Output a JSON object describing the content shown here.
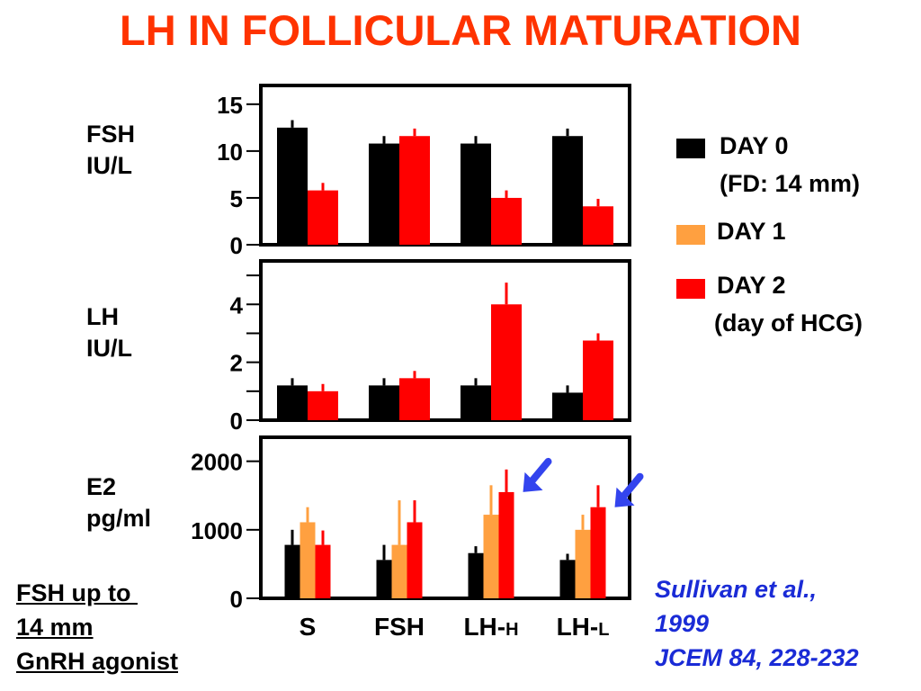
{
  "title": "LH IN FOLLICULAR MATURATION",
  "colors": {
    "title": "#ff3300",
    "day0": "#000000",
    "day1": "#ffa040",
    "day2": "#ff0000",
    "arrow": "#3344ee",
    "citation": "#1a2bd6"
  },
  "legend": [
    {
      "key": "day0",
      "line1": "DAY 0",
      "line2": "(FD: 14 mm)"
    },
    {
      "key": "day1",
      "line1": "DAY 1",
      "line2": ""
    },
    {
      "key": "day2",
      "line1": "DAY 2",
      "line2": "(day of HCG)"
    }
  ],
  "panels_labels": [
    {
      "line1": "FSH",
      "line2": "IU/L"
    },
    {
      "line1": "LH",
      "line2": "IU/L"
    },
    {
      "line1": "E2",
      "line2": "pg/ml"
    }
  ],
  "footnote": {
    "line1": "FSH up to ",
    "line2": "14 mm",
    "line3": "GnRH agonist"
  },
  "citation": {
    "line1": "Sullivan et al.,",
    "line2": "1999",
    "line3": "JCEM 84, 228-232"
  },
  "chart_data": [
    {
      "type": "bar",
      "ylabel": "FSH IU/L",
      "ylim": [
        0,
        17
      ],
      "yticks": [
        0,
        5,
        10,
        15
      ],
      "categories": [
        "S",
        "FSH",
        "LH-H",
        "LH-L"
      ],
      "series": [
        {
          "name": "DAY 0",
          "values": [
            12.5,
            10.8,
            10.8,
            11.6
          ],
          "errors": [
            0.8,
            0.8,
            0.8,
            0.8
          ]
        },
        {
          "name": "DAY 2",
          "values": [
            5.8,
            11.6,
            5.0,
            4.1
          ],
          "errors": [
            0.8,
            0.8,
            0.8,
            0.8
          ]
        }
      ]
    },
    {
      "type": "bar",
      "ylabel": "LH IU/L",
      "ylim": [
        0,
        5.5
      ],
      "yticks": [
        0,
        2,
        4
      ],
      "minor_yticks": [
        1,
        3,
        5
      ],
      "categories": [
        "S",
        "FSH",
        "LH-H",
        "LH-L"
      ],
      "series": [
        {
          "name": "DAY 0",
          "values": [
            1.2,
            1.2,
            1.2,
            0.95
          ],
          "errors": [
            0.25,
            0.25,
            0.25,
            0.25
          ]
        },
        {
          "name": "DAY 2",
          "values": [
            1.0,
            1.45,
            4.0,
            2.75
          ],
          "errors": [
            0.25,
            0.25,
            0.75,
            0.25
          ]
        }
      ]
    },
    {
      "type": "bar",
      "ylabel": "E2 pg/ml",
      "ylim": [
        0,
        2350
      ],
      "yticks": [
        0,
        1000,
        2000
      ],
      "categories": [
        "S",
        "FSH",
        "LH-H",
        "LH-L"
      ],
      "series": [
        {
          "name": "DAY 0",
          "values": [
            780,
            560,
            660,
            560
          ],
          "errors": [
            220,
            220,
            100,
            90
          ]
        },
        {
          "name": "DAY 1",
          "values": [
            1110,
            780,
            1220,
            1000
          ],
          "errors": [
            220,
            650,
            430,
            220
          ]
        },
        {
          "name": "DAY 2",
          "values": [
            780,
            1110,
            1550,
            1330
          ],
          "errors": [
            210,
            320,
            330,
            320
          ]
        }
      ],
      "arrows_on": [
        "LH-H",
        "LH-L"
      ]
    }
  ],
  "x_tick_labels": [
    {
      "main": "S",
      "sub": ""
    },
    {
      "main": "FSH",
      "sub": ""
    },
    {
      "main": "LH-",
      "sub": "H"
    },
    {
      "main": "LH-",
      "sub": "L"
    }
  ]
}
